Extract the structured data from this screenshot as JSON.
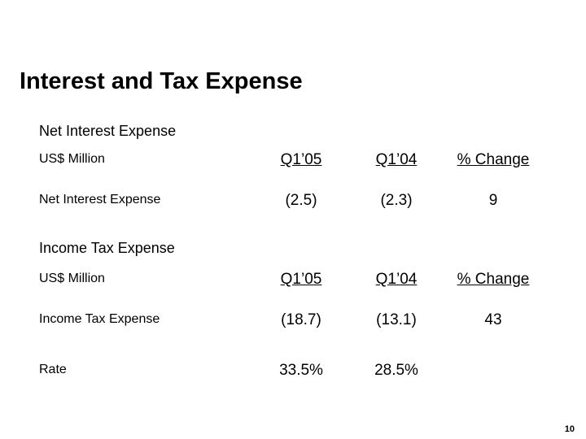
{
  "slide": {
    "title": "Interest and Tax Expense",
    "page_number": "10"
  },
  "net_interest": {
    "section_title": "Net Interest Expense",
    "header": {
      "label": "US$ Million",
      "col1": "Q1’05",
      "col2": "Q1’04",
      "col3": "% Change"
    },
    "rows": [
      {
        "label": "Net Interest Expense",
        "q1_05": "(2.5)",
        "q1_04": "(2.3)",
        "change": "9"
      }
    ]
  },
  "income_tax": {
    "section_title": "Income Tax Expense",
    "header": {
      "label": "US$ Million",
      "col1": "Q1’05",
      "col2": "Q1’04",
      "col3": "% Change"
    },
    "rows": [
      {
        "label": "Income Tax Expense",
        "q1_05": "(18.7)",
        "q1_04": "(13.1)",
        "change": "43"
      },
      {
        "label": "Rate",
        "q1_05": "33.5%",
        "q1_04": "28.5%",
        "change": ""
      }
    ]
  }
}
